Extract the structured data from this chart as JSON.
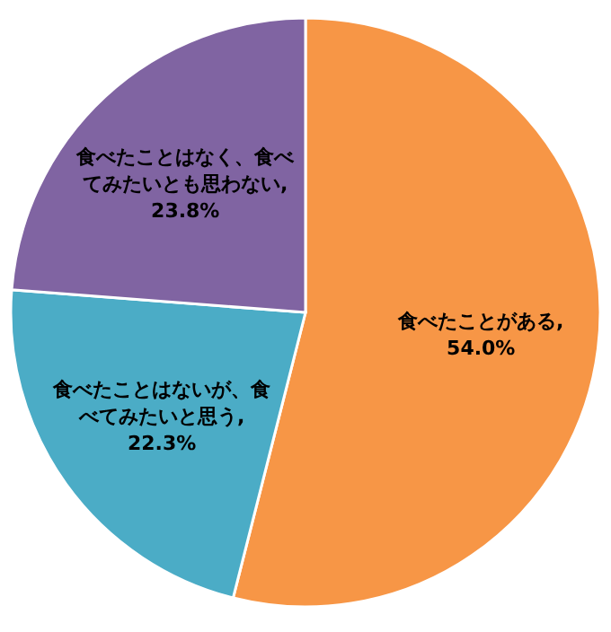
{
  "chart_data": {
    "type": "pie",
    "categories": [
      "食べたことがある",
      "食べたことはないが、食べてみたいと思う",
      "食べたことはなく、食べてみたいとも思わない"
    ],
    "values": [
      54.0,
      22.3,
      23.8
    ],
    "colors": [
      "#f79646",
      "#4bacc6",
      "#8064a2"
    ],
    "value_labels": [
      ", 54.0%",
      ", 22.3%",
      ", 23.8%"
    ]
  }
}
